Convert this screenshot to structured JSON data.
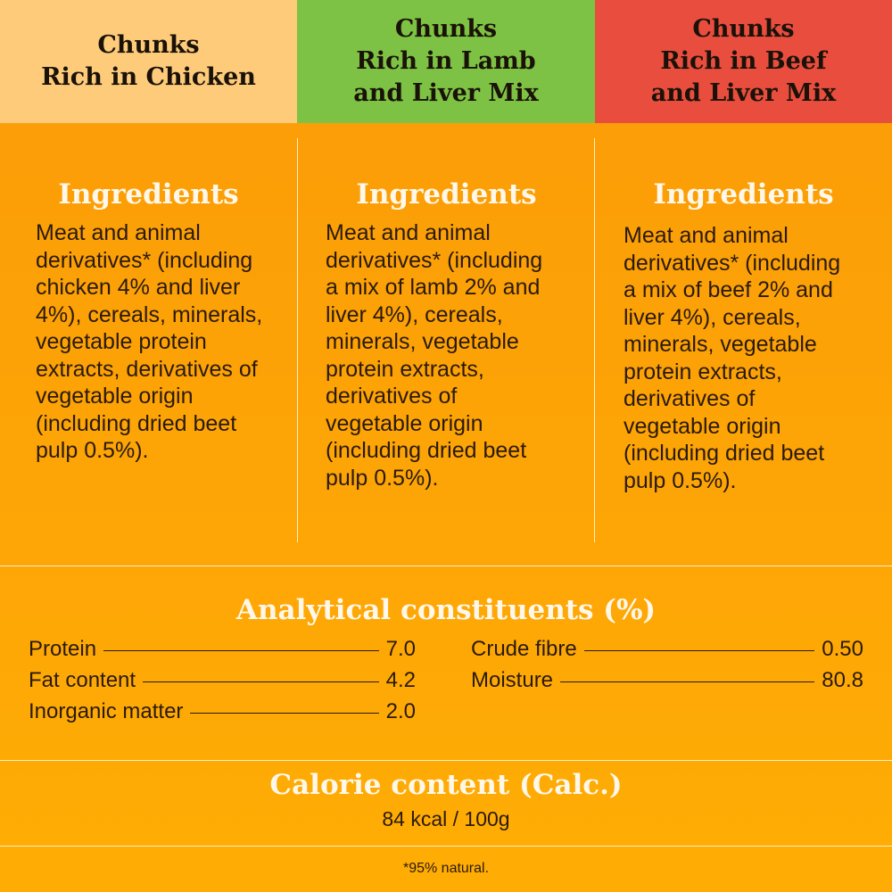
{
  "header": {
    "tabs": [
      {
        "label": "Chunks\nRich in Chicken",
        "color": "#fdcb7a"
      },
      {
        "label": "Chunks\nRich in Lamb\nand Liver Mix",
        "color": "#7dc244"
      },
      {
        "label": "Chunks\nRich in Beef\nand Liver Mix",
        "color": "#e84d3e"
      }
    ]
  },
  "ingredients": [
    {
      "title": "Ingredients",
      "text": "Meat and animal\nderivatives* (including\nchicken 4% and liver\n4%), cereals, minerals,\nvegetable protein\nextracts, derivatives of\nvegetable origin\n(including dried beet\npulp 0.5%)."
    },
    {
      "title": "Ingredients",
      "text": "Meat and animal\nderivatives* (including\na mix of lamb 2% and\nliver 4%), cereals,\nminerals, vegetable\nprotein extracts,\nderivatives of\nvegetable origin\n(including dried beet\npulp 0.5%)."
    },
    {
      "title": "Ingredients",
      "text": "Meat and animal\nderivatives* (including\na mix of beef 2% and\nliver 4%), cereals,\nminerals, vegetable\nprotein extracts,\nderivatives of\nvegetable origin\n(including dried beet\npulp 0.5%)."
    }
  ],
  "analytical": {
    "title": "Analytical constituents (%)",
    "left": [
      {
        "label": "Protein",
        "value": "7.0"
      },
      {
        "label": "Fat content",
        "value": "4.2"
      },
      {
        "label": "Inorganic matter",
        "value": "2.0"
      }
    ],
    "right": [
      {
        "label": "Crude fibre",
        "value": "0.50"
      },
      {
        "label": "Moisture",
        "value": "80.8"
      }
    ]
  },
  "calorie": {
    "title": "Calorie content (Calc.)",
    "value": "84 kcal / 100g"
  },
  "footnote": "*95% natural."
}
